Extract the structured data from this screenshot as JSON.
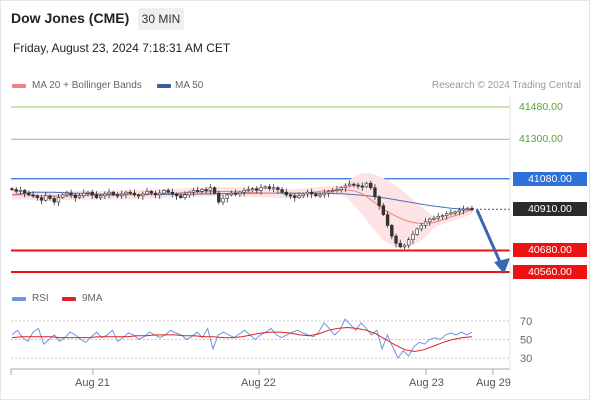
{
  "header": {
    "instrument": "Dow Jones (CME)",
    "timeframe": "30 MIN",
    "datetime": "Friday, August 23, 2024 7:18:31 AM CET"
  },
  "legend": {
    "ma20_label": "MA 20 + Bollinger Bands",
    "ma50_label": "MA 50",
    "credit": "Research © 2024 Trading Central",
    "rsi_label": "RSI",
    "rsi9_label": "9MA"
  },
  "colors": {
    "bullish_candle": "#333333",
    "bearish_candle": "#333333",
    "ma20": "#f08080",
    "bollinger_fill": "#fde3e3",
    "ma50": "#4a72b8",
    "resistance_green": "#8fcc6a",
    "pivot_blue": "#2f6fd6",
    "support_red": "#ee1111",
    "arrow": "#3a67b0",
    "rsi": "#6f95e0",
    "rsi9": "#e02020"
  },
  "price_labels": [
    {
      "value": "41480.00",
      "style": "green"
    },
    {
      "value": "41300.00",
      "style": "green"
    },
    {
      "value": "41080.00",
      "style": "blue"
    },
    {
      "value": "40910.00",
      "style": "current"
    },
    {
      "value": "40680.00",
      "style": "red"
    },
    {
      "value": "40560.00",
      "style": "red"
    }
  ],
  "chart_data": {
    "type": "candlestick",
    "y_range": [
      40540,
      41560
    ],
    "x_labels": [
      "Aug 21",
      "Aug 22",
      "Aug 23",
      "Aug 29"
    ],
    "levels": {
      "resistance": [
        41480,
        41300
      ],
      "pivot": 41080,
      "last_price": 40910,
      "support": [
        40680,
        40560
      ]
    },
    "close_series": [
      41020,
      41010,
      41015,
      41000,
      40990,
      40985,
      40975,
      40960,
      40985,
      40970,
      40950,
      40975,
      40990,
      41000,
      40990,
      40975,
      40985,
      41000,
      41005,
      40990,
      40975,
      40985,
      40995,
      41005,
      40990,
      40985,
      40995,
      41005,
      41000,
      40990,
      40985,
      40995,
      41010,
      41000,
      40990,
      41000,
      41015,
      41005,
      40995,
      40985,
      40975,
      40990,
      41005,
      41015,
      41010,
      41020,
      41015,
      41030,
      41000,
      40950,
      40970,
      40990,
      41000,
      40995,
      41005,
      41015,
      41020,
      41025,
      41015,
      41030,
      41035,
      41025,
      41030,
      41020,
      41005,
      40990,
      40985,
      40975,
      40985,
      40995,
      41005,
      40995,
      40985,
      40990,
      41000,
      41010,
      41015,
      41020,
      41030,
      41040,
      41050,
      41045,
      41040,
      41035,
      41055,
      41030,
      40980,
      40930,
      40880,
      40820,
      40760,
      40720,
      40700,
      40710,
      40740,
      40770,
      40800,
      40820,
      40840,
      40855,
      40860,
      40870,
      40875,
      40885,
      40890,
      40895,
      40905,
      40910,
      40915,
      40910
    ],
    "ma20": [
      40990,
      40990,
      40990,
      40990,
      40988,
      40986,
      40985,
      40984,
      40984,
      40984,
      40984,
      40985,
      40986,
      40987,
      40987,
      40988,
      40988,
      40988,
      40988,
      40988,
      40988,
      40989,
      40990,
      40991,
      40991,
      40991,
      40992,
      40993,
      40994,
      40994,
      40995,
      40997,
      40998,
      40999,
      41000,
      41002,
      41003,
      41004,
      41005,
      41006,
      41007,
      41008,
      41009,
      41009,
      41009,
      41009,
      41008,
      41007,
      41006,
      41005,
      41003,
      41002,
      41001,
      41000,
      40999,
      40998,
      40997,
      40996,
      40996,
      40997,
      40999,
      41002,
      41005,
      41008,
      41011,
      41013,
      41015,
      41016,
      41017,
      41017,
      41015,
      41010,
      41000,
      40985,
      40965,
      40945,
      40925,
      40905,
      40890,
      40875,
      40862,
      40850,
      40842,
      40835,
      40832,
      40830,
      40832,
      40836,
      40842,
      40852,
      40862,
      40870,
      40878,
      40888,
      40898,
      40906
    ],
    "ma50": [
      40990,
      41005,
      41005,
      41000,
      40995,
      40993,
      40992,
      40992,
      40993,
      40995,
      40997,
      40999,
      41000,
      41000,
      41000,
      41000,
      40995,
      40985,
      40970,
      40950,
      40930,
      40915,
      40908
    ],
    "rsi": [
      55,
      60,
      52,
      48,
      58,
      62,
      45,
      50,
      55,
      48,
      52,
      58,
      55,
      50,
      47,
      53,
      58,
      52,
      55,
      60,
      48,
      52,
      57,
      55,
      50,
      53,
      58,
      55,
      52,
      55,
      60,
      57,
      55,
      50,
      53,
      58,
      52,
      62,
      40,
      55,
      58,
      55,
      52,
      56,
      60,
      55,
      50,
      55,
      58,
      62,
      55,
      52,
      55,
      58,
      60,
      57,
      55,
      53,
      58,
      68,
      62,
      55,
      60,
      72,
      66,
      60,
      68,
      62,
      55,
      60,
      40,
      55,
      42,
      30,
      38,
      32,
      42,
      47,
      45,
      50,
      52,
      50,
      55,
      57,
      55,
      58,
      55,
      58
    ],
    "rsi9": [
      52,
      53,
      53,
      53,
      53,
      52,
      52,
      52,
      52,
      53,
      53,
      53,
      53,
      54,
      54,
      55,
      55,
      55,
      54,
      54,
      53,
      53,
      52,
      52,
      53,
      55,
      57,
      58,
      58,
      57,
      55,
      54,
      56,
      60,
      62,
      63,
      62,
      60,
      56,
      50,
      44,
      39,
      37,
      39,
      43,
      47,
      50,
      52,
      53
    ],
    "rsi_levels": [
      70,
      50,
      30
    ],
    "rsi_range": [
      20,
      80
    ]
  }
}
